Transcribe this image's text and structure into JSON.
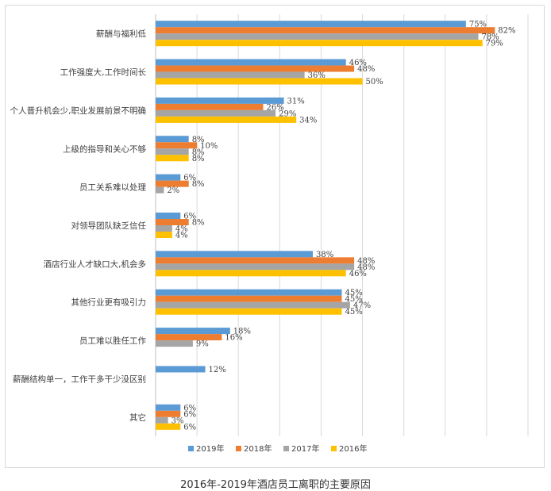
{
  "caption": "2016年-2019年酒店员工离职的主要原因",
  "chart_data": {
    "type": "bar",
    "orientation": "horizontal",
    "title": "",
    "xlabel": "",
    "ylabel": "",
    "xlim": [
      0,
      90
    ],
    "grid": true,
    "legend_position": "bottom",
    "categories": [
      "薪酬与福利低",
      "工作强度大,工作时间长",
      "个人晋升机会少,职业发展前景不明确",
      "上级的指导和关心不够",
      "员工关系难以处理",
      "对领导团队缺乏信任",
      "酒店行业人才缺口大,机会多",
      "其他行业更有吸引力",
      "员工难以胜任工作",
      "薪酬结构单一，工作干多干少没区别",
      "其它"
    ],
    "series": [
      {
        "name": "2019年",
        "color": "#5b9bd5",
        "values": [
          75,
          46,
          31,
          8,
          6,
          6,
          38,
          45,
          18,
          12,
          6
        ],
        "labels": [
          "75%",
          "46%",
          "31%",
          "8%",
          "6%",
          "6%",
          "38%",
          "45%",
          "18%",
          "12%",
          "6%"
        ]
      },
      {
        "name": "2018年",
        "color": "#ed7d31",
        "values": [
          82,
          48,
          26,
          10,
          8,
          8,
          48,
          45,
          16,
          null,
          6
        ],
        "labels": [
          "82%",
          "48%",
          "26%",
          "10%",
          "8%",
          "8%",
          "48%",
          "45%",
          "16%",
          "",
          "6%"
        ]
      },
      {
        "name": "2017年",
        "color": "#a5a5a5",
        "values": [
          78,
          36,
          29,
          8,
          2,
          4,
          48,
          47,
          9,
          null,
          3
        ],
        "labels": [
          "78%",
          "36%",
          "29%",
          "8%",
          "2%",
          "4%",
          "48%",
          "47%",
          "9%",
          "",
          "3%"
        ]
      },
      {
        "name": "2016年",
        "color": "#ffc000",
        "values": [
          79,
          50,
          34,
          8,
          null,
          4,
          46,
          45,
          null,
          null,
          6
        ],
        "labels": [
          "79%",
          "50%",
          "34%",
          "8%",
          "",
          "4%",
          "46%",
          "45%",
          "",
          "",
          "6%"
        ]
      }
    ]
  }
}
